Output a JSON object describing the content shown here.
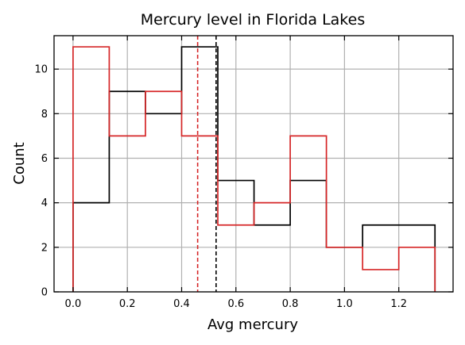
{
  "chart_data": {
    "type": "histogram-step",
    "title": "Mercury level in Florida Lakes",
    "xlabel": "Avg mercury",
    "ylabel": "Count",
    "xlim": [
      -0.07,
      1.4
    ],
    "ylim": [
      0,
      11.5
    ],
    "xticks": [
      0.0,
      0.2,
      0.4,
      0.6,
      0.8,
      1.0,
      1.2
    ],
    "xtick_labels": [
      "0.0",
      "0.2",
      "0.4",
      "0.6",
      "0.8",
      "1.0",
      "1.2"
    ],
    "yticks": [
      0,
      2,
      4,
      6,
      8,
      10
    ],
    "ytick_labels": [
      "0",
      "2",
      "4",
      "6",
      "8",
      "10"
    ],
    "grid": true,
    "bin_edges": [
      0.0,
      0.1333,
      0.2667,
      0.4,
      0.5333,
      0.6667,
      0.8,
      0.9333,
      1.0667,
      1.2,
      1.3333
    ],
    "series": [
      {
        "color": "#000000",
        "counts": [
          4,
          9,
          8,
          11,
          5,
          3,
          5,
          2,
          3,
          3
        ],
        "mean_line": 0.527
      },
      {
        "color": "#d62728",
        "counts": [
          11,
          7,
          9,
          7,
          3,
          4,
          7,
          2,
          1,
          2
        ],
        "mean_line": 0.459
      }
    ]
  }
}
